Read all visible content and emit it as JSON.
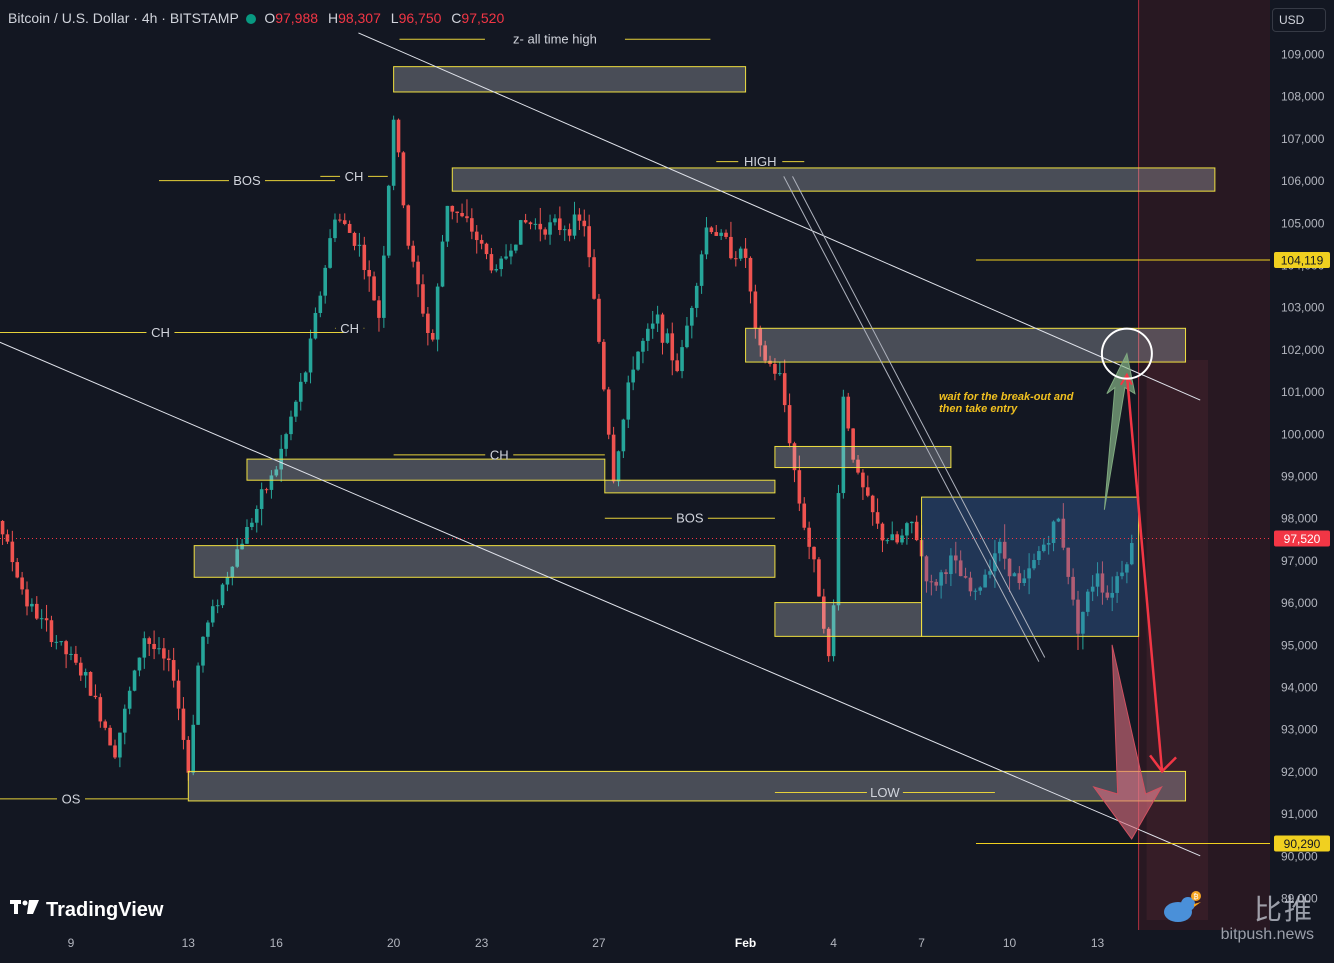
{
  "header": {
    "symbol": "Bitcoin / U.S. Dollar · 4h · BITSTAMP",
    "o_label": "O",
    "o_value": "97,988",
    "h_label": "H",
    "h_value": "98,307",
    "l_label": "L",
    "l_value": "96,750",
    "c_label": "C",
    "c_value": "97,520"
  },
  "currency_button": "USD",
  "branding": {
    "logo_text": "TradingView",
    "watermark_cn": "比推",
    "watermark_en": "bitpush.news"
  },
  "colors": {
    "up": "#26a69a",
    "down": "#ef5350",
    "zone_border": "#f0e040",
    "bg": "#131722",
    "current": "#f23645",
    "level_tag": "#f0d020",
    "right_zone": "#3a1a22"
  },
  "chart_data": {
    "type": "candlestick",
    "title": "",
    "xlabel": "",
    "ylabel": "",
    "ylim": [
      88400,
      109600
    ],
    "x_ticks": [
      {
        "label": "9",
        "day": 9
      },
      {
        "label": "13",
        "day": 13
      },
      {
        "label": "16",
        "day": 16
      },
      {
        "label": "20",
        "day": 20
      },
      {
        "label": "23",
        "day": 23
      },
      {
        "label": "27",
        "day": 27
      },
      {
        "label": "Feb",
        "day": 32
      },
      {
        "label": "4",
        "day": 35
      },
      {
        "label": "7",
        "day": 38
      },
      {
        "label": "10",
        "day": 41
      },
      {
        "label": "13",
        "day": 44
      }
    ],
    "y_ticks": [
      "109,000",
      "108,000",
      "107,000",
      "106,000",
      "105,000",
      "104,000",
      "103,000",
      "102,000",
      "101,000",
      "100,000",
      "99,000",
      "98,000",
      "97,000",
      "96,000",
      "95,000",
      "94,000",
      "93,000",
      "92,000",
      "91,000",
      "90,000",
      "89,000"
    ],
    "y_tick_values": [
      109000,
      108000,
      107000,
      106000,
      105000,
      104000,
      103000,
      102000,
      101000,
      100000,
      99000,
      98000,
      97000,
      96000,
      95000,
      94000,
      93000,
      92000,
      91000,
      90000,
      89000
    ],
    "key_levels": [
      {
        "label": "104,119",
        "value": 104119
      },
      {
        "label": "97,520",
        "value": 97520,
        "current": true
      },
      {
        "label": "90,290",
        "value": 90290
      }
    ],
    "zones": [
      {
        "y1": 108700,
        "y2": 108100,
        "d1": 20.0,
        "d2": 32.0
      },
      {
        "y1": 106300,
        "y2": 105750,
        "d1": 22.0,
        "d2": 48.0
      },
      {
        "y1": 102500,
        "y2": 101700,
        "d1": 32.0,
        "d2": 47.0
      },
      {
        "y1": 99700,
        "y2": 99200,
        "d1": 33.0,
        "d2": 39.0
      },
      {
        "y1": 99400,
        "y2": 98900,
        "d1": 15.0,
        "d2": 27.2
      },
      {
        "y1": 98900,
        "y2": 98600,
        "d1": 27.2,
        "d2": 33.0
      },
      {
        "y1": 97350,
        "y2": 96600,
        "d1": 13.2,
        "d2": 33.0
      },
      {
        "y1": 96000,
        "y2": 95200,
        "d1": 33.0,
        "d2": 38.0
      },
      {
        "y1": 92000,
        "y2": 91300,
        "d1": 13.0,
        "d2": 47.0
      }
    ],
    "consolidation_box": {
      "y1": 98500,
      "y2": 95200,
      "d1": 38.0,
      "d2": 45.4
    },
    "structure_labels": [
      {
        "text": "z- all time high",
        "value": 109350,
        "d1": 20.2,
        "d2": 30.8
      },
      {
        "text": "HIGH",
        "value": 106450,
        "d1": 31.0,
        "d2": 34.0
      },
      {
        "text": "BOS",
        "value": 106000,
        "d1": 12.0,
        "d2": 18.0
      },
      {
        "text": "CH",
        "value": 106100,
        "d1": 17.5,
        "d2": 19.8
      },
      {
        "text": "CH",
        "value": 102400,
        "d1": 5.8,
        "d2": 18.3
      },
      {
        "text": "CH",
        "value": 102500,
        "d1": 18.0,
        "d2": 19.0
      },
      {
        "text": "CH",
        "value": 99500,
        "d1": 20.0,
        "d2": 27.2
      },
      {
        "text": "BOS",
        "value": 98000,
        "d1": 27.2,
        "d2": 33.0
      },
      {
        "text": "LOW",
        "value": 91500,
        "d1": 33.0,
        "d2": 40.5
      },
      {
        "text": "OS",
        "value": 91350,
        "d1": 5.0,
        "d2": 13.0
      }
    ],
    "annotation": "wait for the break-out and\nthen take entry",
    "trendlines": [
      {
        "d1": 18.8,
        "v1": 109500,
        "d2": 47.5,
        "v2": 100800
      },
      {
        "d1": 5.8,
        "v1": 102400,
        "d2": 47.5,
        "v2": 90000
      },
      {
        "d1": 33.3,
        "v1": 106100,
        "d2": 42.0,
        "v2": 94600
      },
      {
        "d1": 33.6,
        "v1": 106100,
        "d2": 42.2,
        "v2": 94700
      }
    ],
    "projections": {
      "long_arrow": {
        "from_day": 44.3,
        "from_value": 98200,
        "to_day": 45.0,
        "to_value": 101900
      },
      "short_arrow": {
        "from_day": 44.7,
        "from_value": 95000,
        "to_day": 45.3,
        "to_value": 90400
      },
      "red_path": [
        [
          45.0,
          101400
        ],
        [
          46.2,
          92000
        ]
      ],
      "target_circle": {
        "day": 45.0,
        "value": 101900
      }
    },
    "now_day": 45.4,
    "candles_desc": "OHLC 4h candles Jan 6 – Feb 14 approximated"
  }
}
